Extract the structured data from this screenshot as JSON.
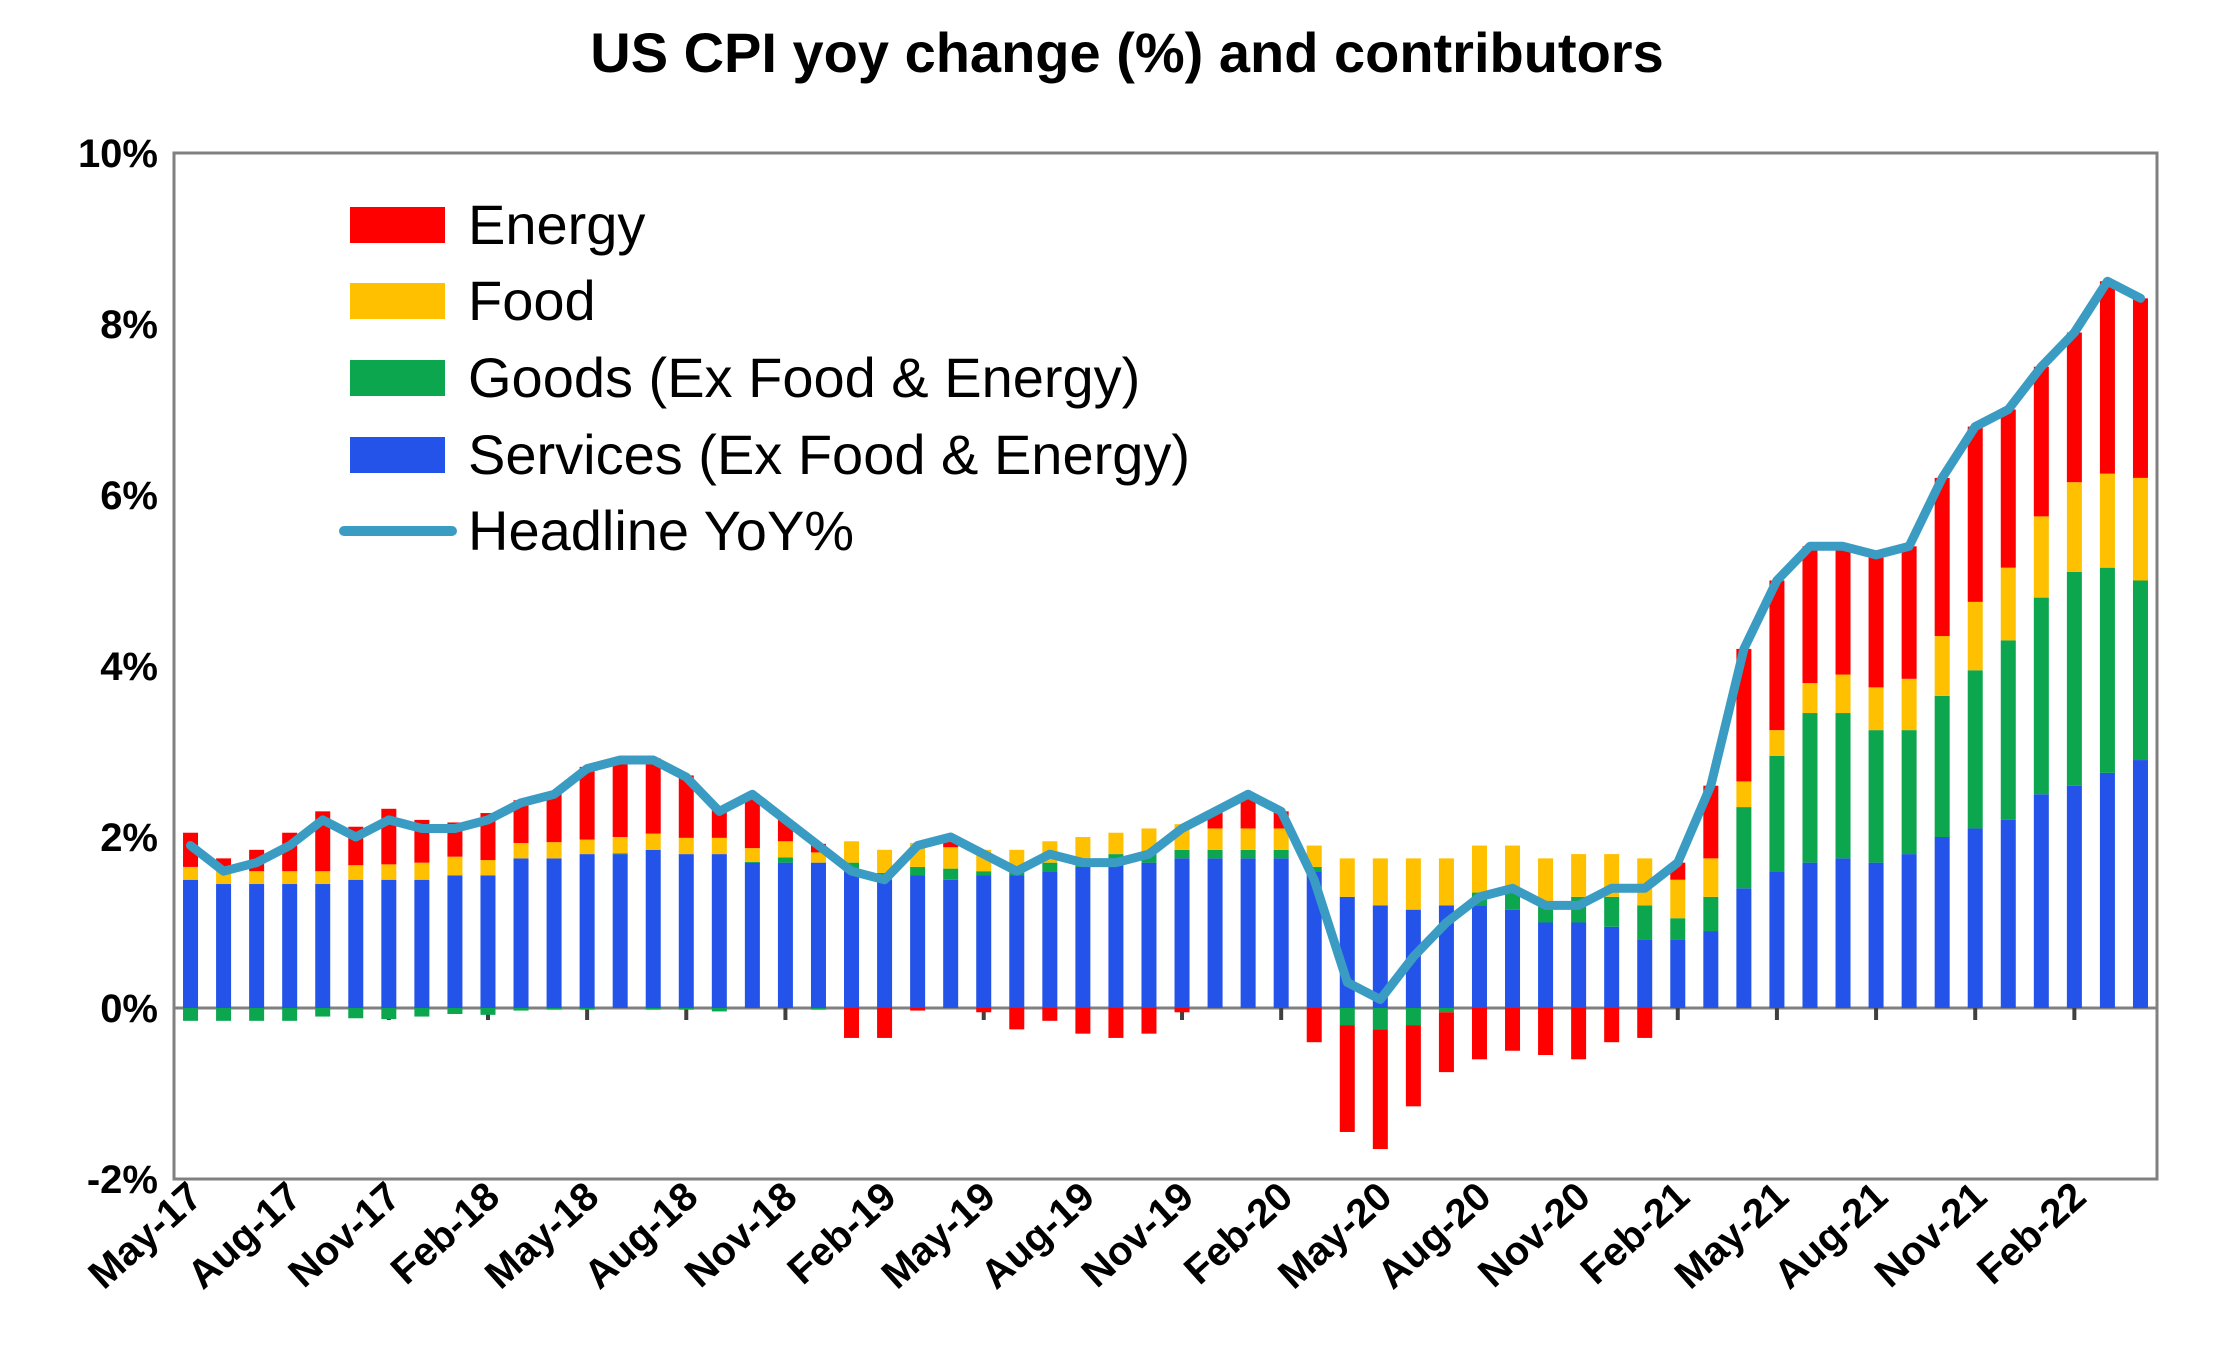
{
  "title": "US CPI yoy change (%) and contributors",
  "legend": {
    "items": [
      {
        "label": "Energy",
        "color": "#FE0000",
        "kind": "box"
      },
      {
        "label": "Food",
        "color": "#FFC000",
        "kind": "box"
      },
      {
        "label": "Goods (Ex Food & Energy)",
        "color": "#0CA64E",
        "kind": "box"
      },
      {
        "label": "Services (Ex Food & Energy)",
        "color": "#2353E8",
        "kind": "box"
      },
      {
        "label": "Headline YoY%",
        "color": "#3A9CC2",
        "kind": "line"
      }
    ]
  },
  "colors": {
    "energy": "#FE0000",
    "food": "#FFC000",
    "goods": "#0CA64E",
    "services": "#2353E8",
    "headline_line": "#3A9CC2",
    "axis": "#808080",
    "tick": "#404040",
    "text": "#000000",
    "background": "#FFFFFF"
  },
  "chart_data": {
    "type": "bar",
    "subtype": "stacked-bar-with-line",
    "title": "US CPI yoy change (%) and contributors",
    "xlabel": "",
    "ylabel": "",
    "ylim": [
      -2,
      10
    ],
    "grid": false,
    "legend_position": "top-left-inside",
    "y_ticks": [
      {
        "value": 10,
        "label": "10%"
      },
      {
        "value": 8,
        "label": "8%"
      },
      {
        "value": 6,
        "label": "6%"
      },
      {
        "value": 4,
        "label": "4%"
      },
      {
        "value": 2,
        "label": "2%"
      },
      {
        "value": 0,
        "label": "0%"
      },
      {
        "value": -2,
        "label": "-2%"
      }
    ],
    "x_tick_every": 3,
    "x_tick_labels": [
      "May-17",
      "Aug-17",
      "Nov-17",
      "Feb-18",
      "May-18",
      "Aug-18",
      "Nov-18",
      "Feb-19",
      "May-19",
      "Aug-19",
      "Nov-19",
      "Feb-20",
      "May-20",
      "Aug-20",
      "Nov-20",
      "Feb-21",
      "May-21",
      "Aug-21",
      "Nov-21",
      "Feb-22"
    ],
    "categories": [
      "May-17",
      "Jun-17",
      "Jul-17",
      "Aug-17",
      "Sep-17",
      "Oct-17",
      "Nov-17",
      "Dec-17",
      "Jan-18",
      "Feb-18",
      "Mar-18",
      "Apr-18",
      "May-18",
      "Jun-18",
      "Jul-18",
      "Aug-18",
      "Sep-18",
      "Oct-18",
      "Nov-18",
      "Dec-18",
      "Jan-19",
      "Feb-19",
      "Mar-19",
      "Apr-19",
      "May-19",
      "Jun-19",
      "Jul-19",
      "Aug-19",
      "Sep-19",
      "Oct-19",
      "Nov-19",
      "Dec-19",
      "Jan-20",
      "Feb-20",
      "Mar-20",
      "Apr-20",
      "May-20",
      "Jun-20",
      "Jul-20",
      "Aug-20",
      "Sep-20",
      "Oct-20",
      "Nov-20",
      "Dec-20",
      "Jan-21",
      "Feb-21",
      "Mar-21",
      "Apr-21",
      "May-21",
      "Jun-21",
      "Jul-21",
      "Aug-21",
      "Sep-21",
      "Oct-21",
      "Nov-21",
      "Dec-21",
      "Jan-22",
      "Feb-22",
      "Mar-22",
      "Apr-22"
    ],
    "stack_order_bottom_to_top": [
      "Services (Ex Food & Energy)",
      "Goods (Ex Food & Energy)",
      "Food",
      "Energy"
    ],
    "series": [
      {
        "name": "Services (Ex Food & Energy)",
        "type": "bar",
        "color": "#2353E8",
        "values": [
          1.5,
          1.45,
          1.45,
          1.45,
          1.45,
          1.5,
          1.5,
          1.5,
          1.55,
          1.55,
          1.75,
          1.75,
          1.8,
          1.8,
          1.85,
          1.8,
          1.8,
          1.7,
          1.7,
          1.7,
          1.6,
          1.5,
          1.55,
          1.5,
          1.55,
          1.55,
          1.6,
          1.65,
          1.7,
          1.7,
          1.75,
          1.75,
          1.75,
          1.75,
          1.6,
          1.3,
          1.2,
          1.15,
          1.2,
          1.2,
          1.15,
          1.0,
          1.0,
          0.95,
          0.8,
          0.8,
          0.9,
          1.4,
          1.6,
          1.7,
          1.75,
          1.7,
          1.8,
          2.0,
          2.1,
          2.2,
          2.5,
          2.6,
          2.75,
          2.9
        ]
      },
      {
        "name": "Goods (Ex Food & Energy)",
        "type": "bar",
        "color": "#0CA64E",
        "values": [
          -0.15,
          -0.15,
          -0.15,
          -0.15,
          -0.1,
          -0.12,
          -0.13,
          -0.1,
          -0.07,
          -0.08,
          -0.03,
          -0.02,
          -0.02,
          0.01,
          -0.02,
          -0.02,
          -0.04,
          0.01,
          0.06,
          -0.02,
          0.1,
          0.08,
          0.1,
          0.13,
          0.05,
          0.05,
          0.1,
          0.1,
          0.1,
          0.1,
          0.1,
          0.1,
          0.1,
          0.1,
          0.05,
          -0.2,
          -0.25,
          -0.2,
          -0.05,
          0.15,
          0.25,
          0.25,
          0.3,
          0.35,
          0.4,
          0.25,
          0.4,
          0.95,
          1.35,
          1.75,
          1.7,
          1.55,
          1.45,
          1.65,
          1.85,
          2.1,
          2.3,
          2.5,
          2.4,
          2.1
        ]
      },
      {
        "name": "Food",
        "type": "bar",
        "color": "#FFC000",
        "values": [
          0.15,
          0.15,
          0.15,
          0.15,
          0.15,
          0.17,
          0.18,
          0.2,
          0.22,
          0.18,
          0.18,
          0.19,
          0.17,
          0.19,
          0.19,
          0.19,
          0.19,
          0.16,
          0.19,
          0.12,
          0.25,
          0.27,
          0.28,
          0.25,
          0.25,
          0.25,
          0.25,
          0.25,
          0.25,
          0.3,
          0.3,
          0.25,
          0.25,
          0.25,
          0.25,
          0.45,
          0.55,
          0.6,
          0.55,
          0.55,
          0.5,
          0.5,
          0.5,
          0.5,
          0.55,
          0.45,
          0.45,
          0.3,
          0.3,
          0.35,
          0.45,
          0.5,
          0.6,
          0.7,
          0.8,
          0.85,
          0.95,
          1.05,
          1.1,
          1.2
        ]
      },
      {
        "name": "Energy",
        "type": "bar",
        "color": "#FE0000",
        "values": [
          0.4,
          0.15,
          0.25,
          0.45,
          0.7,
          0.45,
          0.65,
          0.5,
          0.4,
          0.55,
          0.5,
          0.58,
          0.85,
          0.9,
          0.88,
          0.73,
          0.35,
          0.63,
          0.25,
          0.1,
          -0.35,
          -0.35,
          -0.03,
          0.12,
          -0.05,
          -0.25,
          -0.15,
          -0.3,
          -0.35,
          -0.3,
          -0.05,
          0.2,
          0.4,
          0.2,
          -0.4,
          -1.25,
          -1.4,
          -0.95,
          -0.7,
          -0.6,
          -0.5,
          -0.55,
          -0.6,
          -0.4,
          -0.35,
          0.2,
          0.85,
          1.55,
          1.75,
          1.6,
          1.5,
          1.55,
          1.55,
          1.85,
          2.05,
          1.85,
          1.75,
          1.75,
          2.25,
          2.1
        ]
      }
    ],
    "line_series": {
      "name": "Headline YoY%",
      "type": "line",
      "color": "#3A9CC2",
      "values": [
        1.9,
        1.6,
        1.7,
        1.9,
        2.2,
        2.0,
        2.2,
        2.1,
        2.1,
        2.2,
        2.4,
        2.5,
        2.8,
        2.9,
        2.9,
        2.7,
        2.3,
        2.5,
        2.2,
        1.9,
        1.6,
        1.5,
        1.9,
        2.0,
        1.8,
        1.6,
        1.8,
        1.7,
        1.7,
        1.8,
        2.1,
        2.3,
        2.5,
        2.3,
        1.5,
        0.3,
        0.1,
        0.6,
        1.0,
        1.3,
        1.4,
        1.2,
        1.2,
        1.4,
        1.4,
        1.7,
        2.6,
        4.2,
        5.0,
        5.4,
        5.4,
        5.3,
        5.4,
        6.2,
        6.8,
        7.0,
        7.5,
        7.9,
        8.5,
        8.3
      ]
    }
  }
}
